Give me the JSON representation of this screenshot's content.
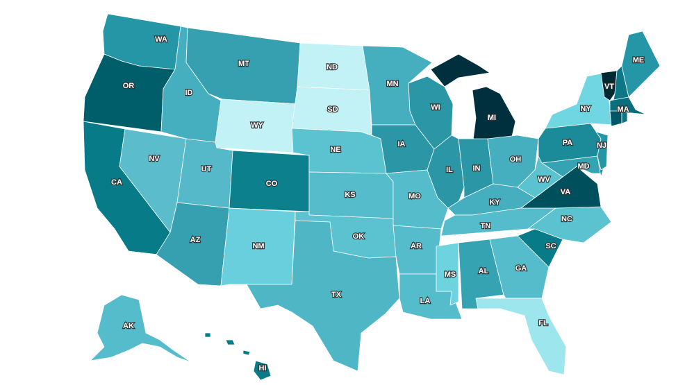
{
  "map": {
    "type": "choropleth",
    "states": [
      {
        "code": "WA",
        "label": "WA",
        "color": "#2596a6"
      },
      {
        "code": "OR",
        "label": "OR",
        "color": "#005e6b"
      },
      {
        "code": "CA",
        "label": "CA",
        "color": "#087b89"
      },
      {
        "code": "NV",
        "label": "NV",
        "color": "#5bbccc"
      },
      {
        "code": "ID",
        "label": "ID",
        "color": "#45aebf"
      },
      {
        "code": "MT",
        "label": "MT",
        "color": "#36a0b0"
      },
      {
        "code": "WY",
        "label": "WY",
        "color": "#c2f2f6"
      },
      {
        "code": "UT",
        "label": "UT",
        "color": "#55b9c9"
      },
      {
        "code": "AZ",
        "label": "AZ",
        "color": "#36a0b0"
      },
      {
        "code": "CO",
        "label": "CO",
        "color": "#0c808d"
      },
      {
        "code": "NM",
        "label": "NM",
        "color": "#6acfdc"
      },
      {
        "code": "ND",
        "label": "ND",
        "color": "#c2f2f6"
      },
      {
        "code": "SD",
        "label": "SD",
        "color": "#c2f2f6"
      },
      {
        "code": "NE",
        "label": "NE",
        "color": "#5bc2d0"
      },
      {
        "code": "KS",
        "label": "KS",
        "color": "#55bccc"
      },
      {
        "code": "OK",
        "label": "OK",
        "color": "#5bc2d0"
      },
      {
        "code": "TX",
        "label": "TX",
        "color": "#4fb6c6"
      },
      {
        "code": "MN",
        "label": "MN",
        "color": "#45aebf"
      },
      {
        "code": "IA",
        "label": "IA",
        "color": "#2b96a6"
      },
      {
        "code": "MO",
        "label": "MO",
        "color": "#55bccc"
      },
      {
        "code": "AR",
        "label": "AR",
        "color": "#55bccc"
      },
      {
        "code": "LA",
        "label": "LA",
        "color": "#55bccc"
      },
      {
        "code": "WI",
        "label": "WI",
        "color": "#2b96a6"
      },
      {
        "code": "IL",
        "label": "IL",
        "color": "#2b96a6"
      },
      {
        "code": "MI",
        "label": "MI",
        "color": "#00303d"
      },
      {
        "code": "IN",
        "label": "IN",
        "color": "#2b96a6"
      },
      {
        "code": "OH",
        "label": "OH",
        "color": "#45aebf"
      },
      {
        "code": "KY",
        "label": "KY",
        "color": "#45aebf"
      },
      {
        "code": "TN",
        "label": "TN",
        "color": "#55bccc"
      },
      {
        "code": "MS",
        "label": "MS",
        "color": "#6dd3df"
      },
      {
        "code": "AL",
        "label": "AL",
        "color": "#36a3b3"
      },
      {
        "code": "GA",
        "label": "GA",
        "color": "#55bccc"
      },
      {
        "code": "FL",
        "label": "FL",
        "color": "#9ee6ee"
      },
      {
        "code": "SC",
        "label": "SC",
        "color": "#087b89"
      },
      {
        "code": "NC",
        "label": "NC",
        "color": "#5bc2d0"
      },
      {
        "code": "VA",
        "label": "VA",
        "color": "#004f5c"
      },
      {
        "code": "WV",
        "label": "WV",
        "color": "#5bc2d0"
      },
      {
        "code": "PA",
        "label": "PA",
        "color": "#1b8b9a"
      },
      {
        "code": "NY",
        "label": "NY",
        "color": "#6fd6e2"
      },
      {
        "code": "MD",
        "label": "MD",
        "color": "#36a3b3"
      },
      {
        "code": "DE",
        "label": "",
        "color": "#1b8b9a"
      },
      {
        "code": "NJ",
        "label": "NJ",
        "color": "#2596a6"
      },
      {
        "code": "VT",
        "label": "VT",
        "color": "#002a33"
      },
      {
        "code": "NH",
        "label": "",
        "color": "#0d7785"
      },
      {
        "code": "ME",
        "label": "ME",
        "color": "#2596a6"
      },
      {
        "code": "MA",
        "label": "MA",
        "color": "#08707d"
      },
      {
        "code": "CT",
        "label": "",
        "color": "#005766"
      },
      {
        "code": "RI",
        "label": "",
        "color": "#0d7785"
      },
      {
        "code": "AK",
        "label": "AK",
        "color": "#55bccc"
      },
      {
        "code": "HI",
        "label": "HI",
        "color": "#087b89"
      }
    ]
  }
}
